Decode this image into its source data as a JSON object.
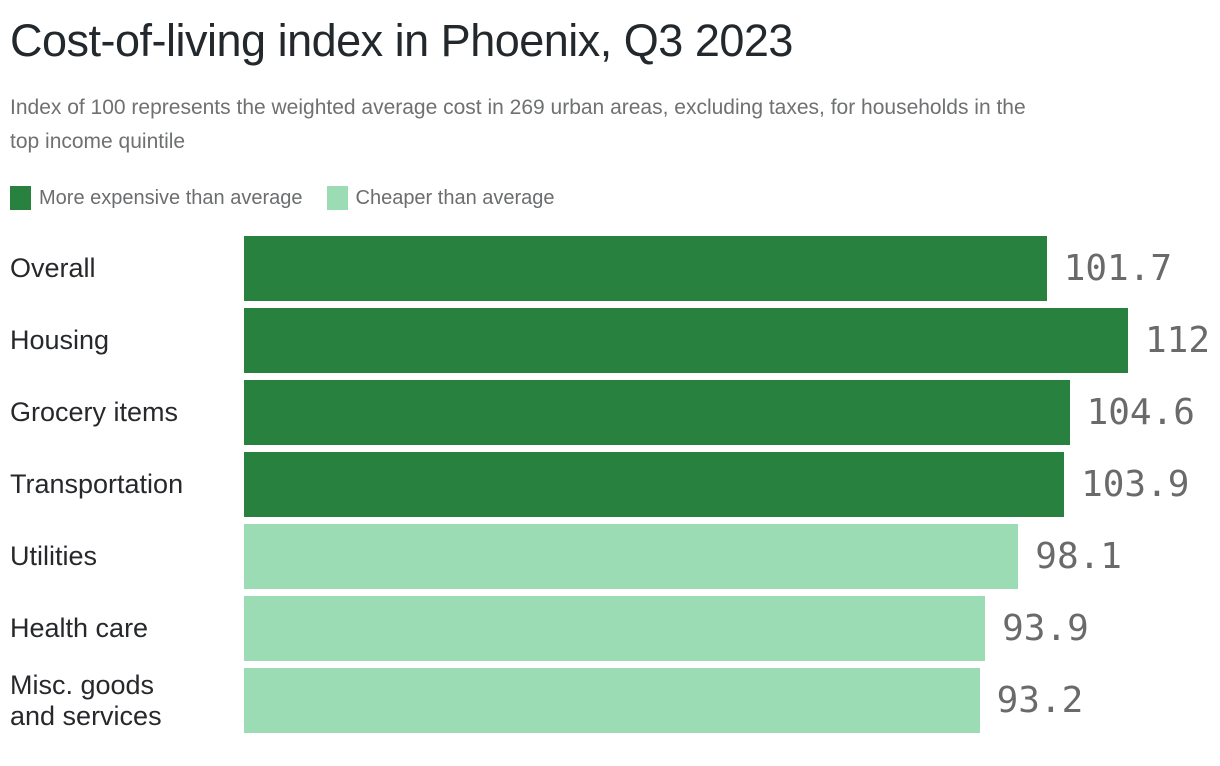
{
  "chart_data": {
    "type": "bar",
    "orientation": "horizontal",
    "title": "Cost-of-living index in Phoenix, Q3 2023",
    "subtitle": "Index of 100 represents the weighted average cost in 269 urban areas, excluding taxes, for households in the top income quintile",
    "subtitle_lines": [
      "Index of 100 represents the weighted average cost in 269 urban areas, excluding taxes, for households in the",
      "top income quintile"
    ],
    "categories": [
      "Overall",
      "Housing",
      "Grocery items",
      "Transportation",
      "Utilities",
      "Health care",
      "Misc. goods and services"
    ],
    "category_display_lines": [
      [
        "Overall"
      ],
      [
        "Housing"
      ],
      [
        "Grocery items"
      ],
      [
        "Transportation"
      ],
      [
        "Utilities"
      ],
      [
        "Health care"
      ],
      [
        "Misc. goods",
        "and services"
      ]
    ],
    "values": [
      101.7,
      112,
      104.6,
      103.9,
      98.1,
      93.9,
      93.2
    ],
    "value_labels": [
      "101.7",
      "112",
      "104.6",
      "103.9",
      "98.1",
      "93.9",
      "93.2"
    ],
    "bar_colors": [
      "#28813e",
      "#28813e",
      "#28813e",
      "#28813e",
      "#9cdcb4",
      "#9cdcb4",
      "#9cdcb4"
    ],
    "reference_value": 100,
    "xlim": [
      0,
      112
    ],
    "grid": false,
    "legend_position": "top",
    "legend": [
      {
        "label": "More expensive than average",
        "color": "#28813e"
      },
      {
        "label": "Cheaper than average",
        "color": "#9cdcb4"
      }
    ]
  },
  "colors": {
    "more_expensive": "#28813e",
    "cheaper": "#9cdcb4",
    "title_text": "#23282d",
    "subtitle_text": "#6e7072",
    "category_text": "#26282b",
    "value_text": "#6a6a6a",
    "legend_text": "#6b6d6f",
    "background": "#ffffff"
  }
}
